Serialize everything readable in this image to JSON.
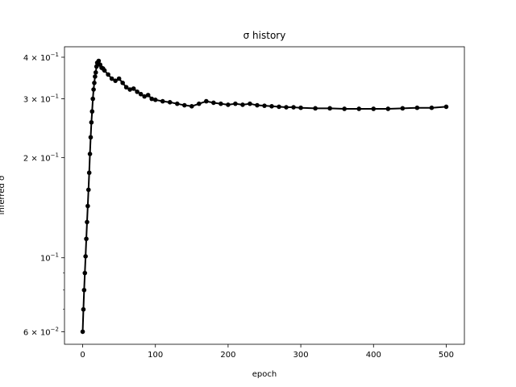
{
  "chart_data": {
    "type": "line",
    "title": "σ history",
    "xlabel": "epoch",
    "ylabel": "inferred σ",
    "xlim": [
      -25,
      525
    ],
    "ylim": [
      0.055,
      0.43
    ],
    "yscale": "log",
    "grid": false,
    "line_color": "#000000",
    "marker": "dot",
    "x_ticks": [
      {
        "value": 0,
        "label": "0"
      },
      {
        "value": 100,
        "label": "100"
      },
      {
        "value": 200,
        "label": "200"
      },
      {
        "value": 300,
        "label": "300"
      },
      {
        "value": 400,
        "label": "400"
      },
      {
        "value": 500,
        "label": "500"
      }
    ],
    "y_ticks": [
      {
        "value": 0.06,
        "base": "6 × 10",
        "exp": "−2"
      },
      {
        "value": 0.1,
        "base": "10",
        "exp": "−1"
      },
      {
        "value": 0.2,
        "base": "2 × 10",
        "exp": "−1"
      },
      {
        "value": 0.3,
        "base": "3 × 10",
        "exp": "−1"
      },
      {
        "value": 0.4,
        "base": "4 × 10",
        "exp": "−1"
      }
    ],
    "y_minor_ticks": [
      0.07,
      0.08,
      0.09
    ],
    "series": [
      {
        "x": [
          0,
          1,
          2,
          3,
          4,
          5,
          6,
          7,
          8,
          9,
          10,
          11,
          12,
          13,
          14,
          15,
          16,
          17,
          18,
          19,
          20,
          22,
          24,
          26,
          28,
          30,
          35,
          40,
          45,
          50,
          55,
          60,
          65,
          70,
          75,
          80,
          85,
          90,
          95,
          100,
          110,
          120,
          130,
          140,
          150,
          160,
          170,
          180,
          190,
          200,
          210,
          220,
          230,
          240,
          250,
          260,
          270,
          280,
          290,
          300,
          320,
          340,
          360,
          380,
          400,
          420,
          440,
          460,
          480,
          500
        ],
        "y": [
          0.06,
          0.07,
          0.08,
          0.09,
          0.101,
          0.114,
          0.128,
          0.143,
          0.16,
          0.18,
          0.205,
          0.23,
          0.255,
          0.275,
          0.3,
          0.32,
          0.335,
          0.35,
          0.36,
          0.375,
          0.385,
          0.39,
          0.38,
          0.372,
          0.37,
          0.365,
          0.355,
          0.345,
          0.34,
          0.345,
          0.335,
          0.325,
          0.32,
          0.322,
          0.315,
          0.31,
          0.305,
          0.308,
          0.3,
          0.298,
          0.295,
          0.293,
          0.29,
          0.287,
          0.285,
          0.29,
          0.295,
          0.292,
          0.29,
          0.288,
          0.29,
          0.288,
          0.29,
          0.287,
          0.286,
          0.285,
          0.284,
          0.283,
          0.283,
          0.282,
          0.281,
          0.281,
          0.28,
          0.28,
          0.28,
          0.28,
          0.281,
          0.282,
          0.282,
          0.284
        ]
      }
    ]
  }
}
